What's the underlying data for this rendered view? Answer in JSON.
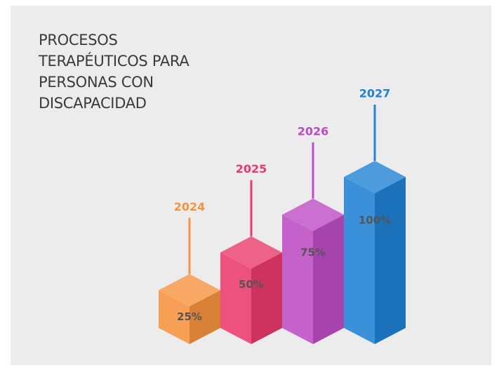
{
  "chart_data": {
    "type": "bar3d",
    "title": "PROCESOS TERAPÉUTICOS PARA PERSONAS CON DISCAPACIDAD",
    "categories": [
      "2024",
      "2025",
      "2026",
      "2027"
    ],
    "values": [
      25,
      50,
      75,
      100
    ],
    "value_labels": [
      "25%",
      "50%",
      "75%",
      "100%"
    ],
    "colors": [
      "#f7923f",
      "#ea3a6c",
      "#bd4cc4",
      "#1f82d4"
    ]
  }
}
